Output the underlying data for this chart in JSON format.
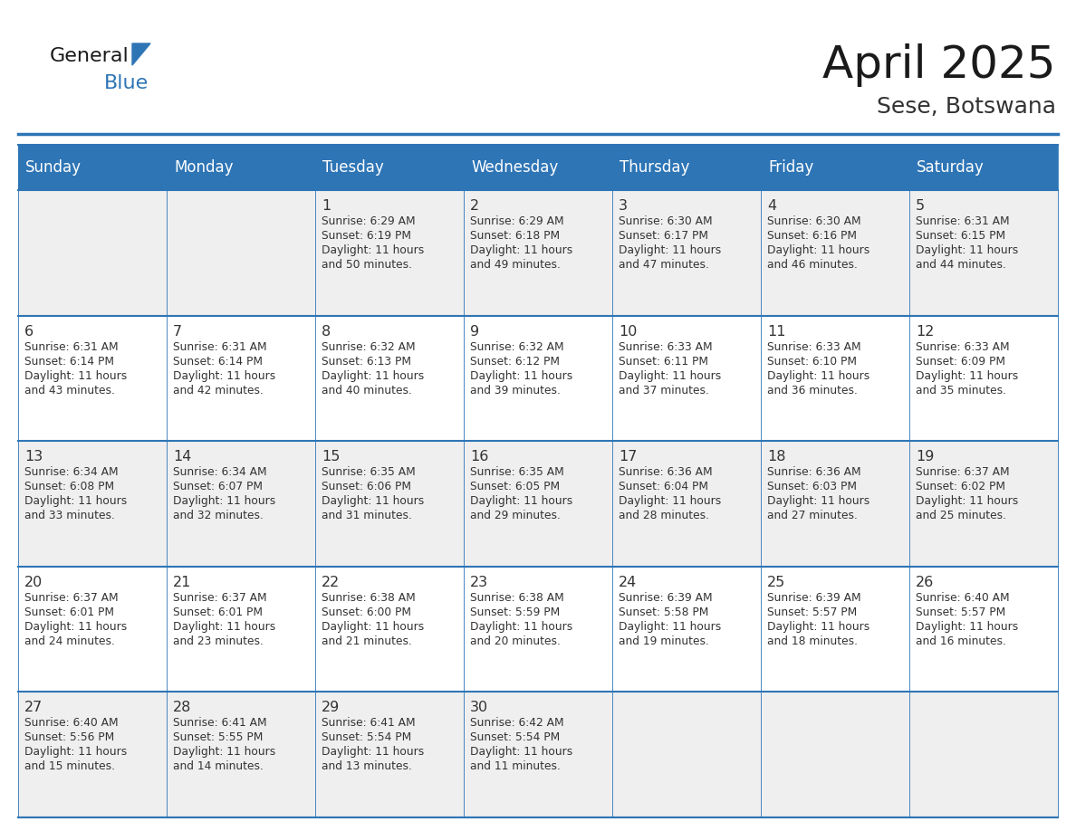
{
  "title": "April 2025",
  "subtitle": "Sese, Botswana",
  "header_bg_color": "#2E75B6",
  "header_text_color": "#FFFFFF",
  "day_names": [
    "Sunday",
    "Monday",
    "Tuesday",
    "Wednesday",
    "Thursday",
    "Friday",
    "Saturday"
  ],
  "cell_bg_light": "#EFEFEF",
  "cell_bg_white": "#FFFFFF",
  "cell_text_color": "#333333",
  "grid_line_color": "#2E75B6",
  "title_color": "#1a1a1a",
  "subtitle_color": "#333333",
  "logo_general_color": "#1a1a1a",
  "logo_blue_color": "#2E75B6",
  "row_bg_colors": [
    "#EFEFEF",
    "#FFFFFF",
    "#EFEFEF",
    "#FFFFFF",
    "#EFEFEF"
  ],
  "calendar_data": [
    [
      null,
      null,
      {
        "day": 1,
        "sunrise": "6:29 AM",
        "sunset": "6:19 PM",
        "daylight": "11 hours and 50 minutes."
      },
      {
        "day": 2,
        "sunrise": "6:29 AM",
        "sunset": "6:18 PM",
        "daylight": "11 hours and 49 minutes."
      },
      {
        "day": 3,
        "sunrise": "6:30 AM",
        "sunset": "6:17 PM",
        "daylight": "11 hours and 47 minutes."
      },
      {
        "day": 4,
        "sunrise": "6:30 AM",
        "sunset": "6:16 PM",
        "daylight": "11 hours and 46 minutes."
      },
      {
        "day": 5,
        "sunrise": "6:31 AM",
        "sunset": "6:15 PM",
        "daylight": "11 hours and 44 minutes."
      }
    ],
    [
      {
        "day": 6,
        "sunrise": "6:31 AM",
        "sunset": "6:14 PM",
        "daylight": "11 hours and 43 minutes."
      },
      {
        "day": 7,
        "sunrise": "6:31 AM",
        "sunset": "6:14 PM",
        "daylight": "11 hours and 42 minutes."
      },
      {
        "day": 8,
        "sunrise": "6:32 AM",
        "sunset": "6:13 PM",
        "daylight": "11 hours and 40 minutes."
      },
      {
        "day": 9,
        "sunrise": "6:32 AM",
        "sunset": "6:12 PM",
        "daylight": "11 hours and 39 minutes."
      },
      {
        "day": 10,
        "sunrise": "6:33 AM",
        "sunset": "6:11 PM",
        "daylight": "11 hours and 37 minutes."
      },
      {
        "day": 11,
        "sunrise": "6:33 AM",
        "sunset": "6:10 PM",
        "daylight": "11 hours and 36 minutes."
      },
      {
        "day": 12,
        "sunrise": "6:33 AM",
        "sunset": "6:09 PM",
        "daylight": "11 hours and 35 minutes."
      }
    ],
    [
      {
        "day": 13,
        "sunrise": "6:34 AM",
        "sunset": "6:08 PM",
        "daylight": "11 hours and 33 minutes."
      },
      {
        "day": 14,
        "sunrise": "6:34 AM",
        "sunset": "6:07 PM",
        "daylight": "11 hours and 32 minutes."
      },
      {
        "day": 15,
        "sunrise": "6:35 AM",
        "sunset": "6:06 PM",
        "daylight": "11 hours and 31 minutes."
      },
      {
        "day": 16,
        "sunrise": "6:35 AM",
        "sunset": "6:05 PM",
        "daylight": "11 hours and 29 minutes."
      },
      {
        "day": 17,
        "sunrise": "6:36 AM",
        "sunset": "6:04 PM",
        "daylight": "11 hours and 28 minutes."
      },
      {
        "day": 18,
        "sunrise": "6:36 AM",
        "sunset": "6:03 PM",
        "daylight": "11 hours and 27 minutes."
      },
      {
        "day": 19,
        "sunrise": "6:37 AM",
        "sunset": "6:02 PM",
        "daylight": "11 hours and 25 minutes."
      }
    ],
    [
      {
        "day": 20,
        "sunrise": "6:37 AM",
        "sunset": "6:01 PM",
        "daylight": "11 hours and 24 minutes."
      },
      {
        "day": 21,
        "sunrise": "6:37 AM",
        "sunset": "6:01 PM",
        "daylight": "11 hours and 23 minutes."
      },
      {
        "day": 22,
        "sunrise": "6:38 AM",
        "sunset": "6:00 PM",
        "daylight": "11 hours and 21 minutes."
      },
      {
        "day": 23,
        "sunrise": "6:38 AM",
        "sunset": "5:59 PM",
        "daylight": "11 hours and 20 minutes."
      },
      {
        "day": 24,
        "sunrise": "6:39 AM",
        "sunset": "5:58 PM",
        "daylight": "11 hours and 19 minutes."
      },
      {
        "day": 25,
        "sunrise": "6:39 AM",
        "sunset": "5:57 PM",
        "daylight": "11 hours and 18 minutes."
      },
      {
        "day": 26,
        "sunrise": "6:40 AM",
        "sunset": "5:57 PM",
        "daylight": "11 hours and 16 minutes."
      }
    ],
    [
      {
        "day": 27,
        "sunrise": "6:40 AM",
        "sunset": "5:56 PM",
        "daylight": "11 hours and 15 minutes."
      },
      {
        "day": 28,
        "sunrise": "6:41 AM",
        "sunset": "5:55 PM",
        "daylight": "11 hours and 14 minutes."
      },
      {
        "day": 29,
        "sunrise": "6:41 AM",
        "sunset": "5:54 PM",
        "daylight": "11 hours and 13 minutes."
      },
      {
        "day": 30,
        "sunrise": "6:42 AM",
        "sunset": "5:54 PM",
        "daylight": "11 hours and 11 minutes."
      },
      null,
      null,
      null
    ]
  ]
}
